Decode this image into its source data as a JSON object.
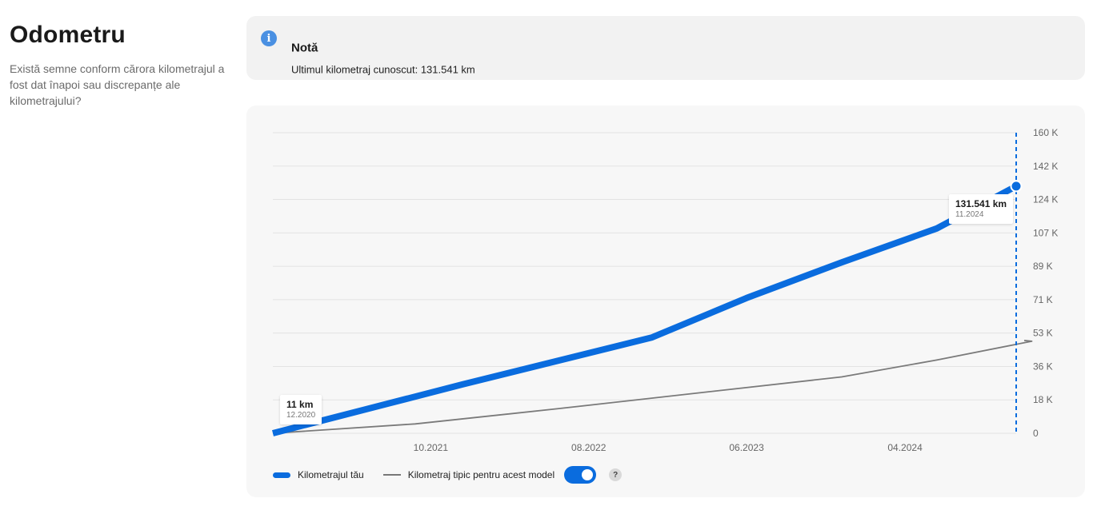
{
  "page": {
    "title": "Odometru",
    "description": "Există semne conform cărora kilometrajul a fost dat înapoi sau discrepanțe ale kilometrajului?"
  },
  "note": {
    "icon": "info-icon",
    "title": "Notă",
    "text": "Ultimul kilometraj cunoscut: 131.541 km"
  },
  "chart_data": {
    "type": "line",
    "x_tick_labels": [
      "10.2021",
      "08.2022",
      "06.2023",
      "04.2024"
    ],
    "y_tick_labels": [
      "0",
      "18 K",
      "36 K",
      "53 K",
      "71 K",
      "89 K",
      "107 K",
      "124 K",
      "142 K",
      "160 K"
    ],
    "ylim": [
      0,
      160000
    ],
    "grid": true,
    "legend_position": "bottom-left",
    "series": [
      {
        "name": "Kilometrajul tău",
        "color": "#0a6cde",
        "points": [
          {
            "x": "2020-12",
            "y": 11
          },
          {
            "x": "2021-12",
            "y": 26000
          },
          {
            "x": "2022-12",
            "y": 51000
          },
          {
            "x": "2023-06",
            "y": 72000
          },
          {
            "x": "2023-12",
            "y": 91000
          },
          {
            "x": "2024-06",
            "y": 109000
          },
          {
            "x": "2024-11",
            "y": 131541
          }
        ]
      },
      {
        "name": "Kilometraj tipic pentru acest model",
        "color": "#7a7a7a",
        "points": [
          {
            "x": "2020-12",
            "y": 0
          },
          {
            "x": "2021-09",
            "y": 5000
          },
          {
            "x": "2022-06",
            "y": 13000
          },
          {
            "x": "2023-03",
            "y": 21500
          },
          {
            "x": "2023-12",
            "y": 30000
          },
          {
            "x": "2024-06",
            "y": 39000
          },
          {
            "x": "2024-12",
            "y": 49000
          }
        ]
      }
    ],
    "annotations": [
      {
        "value": "11 km",
        "date": "12.2020"
      },
      {
        "value": "131.541 km",
        "date": "11.2024"
      }
    ]
  },
  "legend": {
    "mine_label": "Kilometrajul tău",
    "typical_label": "Kilometraj tipic pentru acest model",
    "toggle_on": true,
    "help_label": "?"
  }
}
